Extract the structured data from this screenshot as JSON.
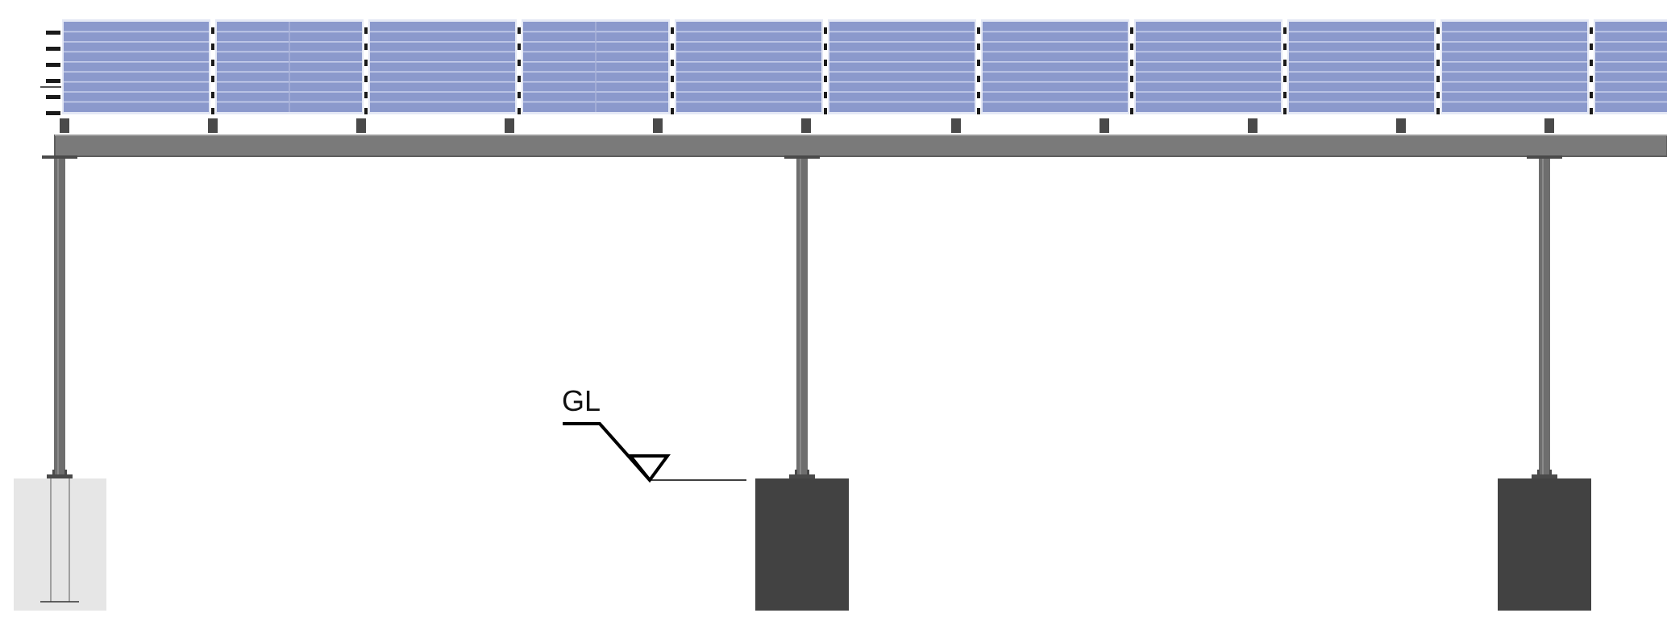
{
  "diagram": {
    "ground_level_label": "GL",
    "panel_count": 11,
    "post_count": 3,
    "colors": {
      "panel_fill": "#8b99cc",
      "panel_light_line": "#c5cdea",
      "panel_frame": "#e4e8f5",
      "clamp": "#1a1a1a",
      "beam": "#7a7a7a",
      "beam_edge": "#5e5e5e",
      "post": "#6e6e6e",
      "bracket": "#4a4a4a",
      "foundation_dark": "#424242",
      "foundation_light": "#e6e6e6",
      "line": "#000000"
    },
    "icons": [
      "ground-level-symbol-icon"
    ]
  }
}
